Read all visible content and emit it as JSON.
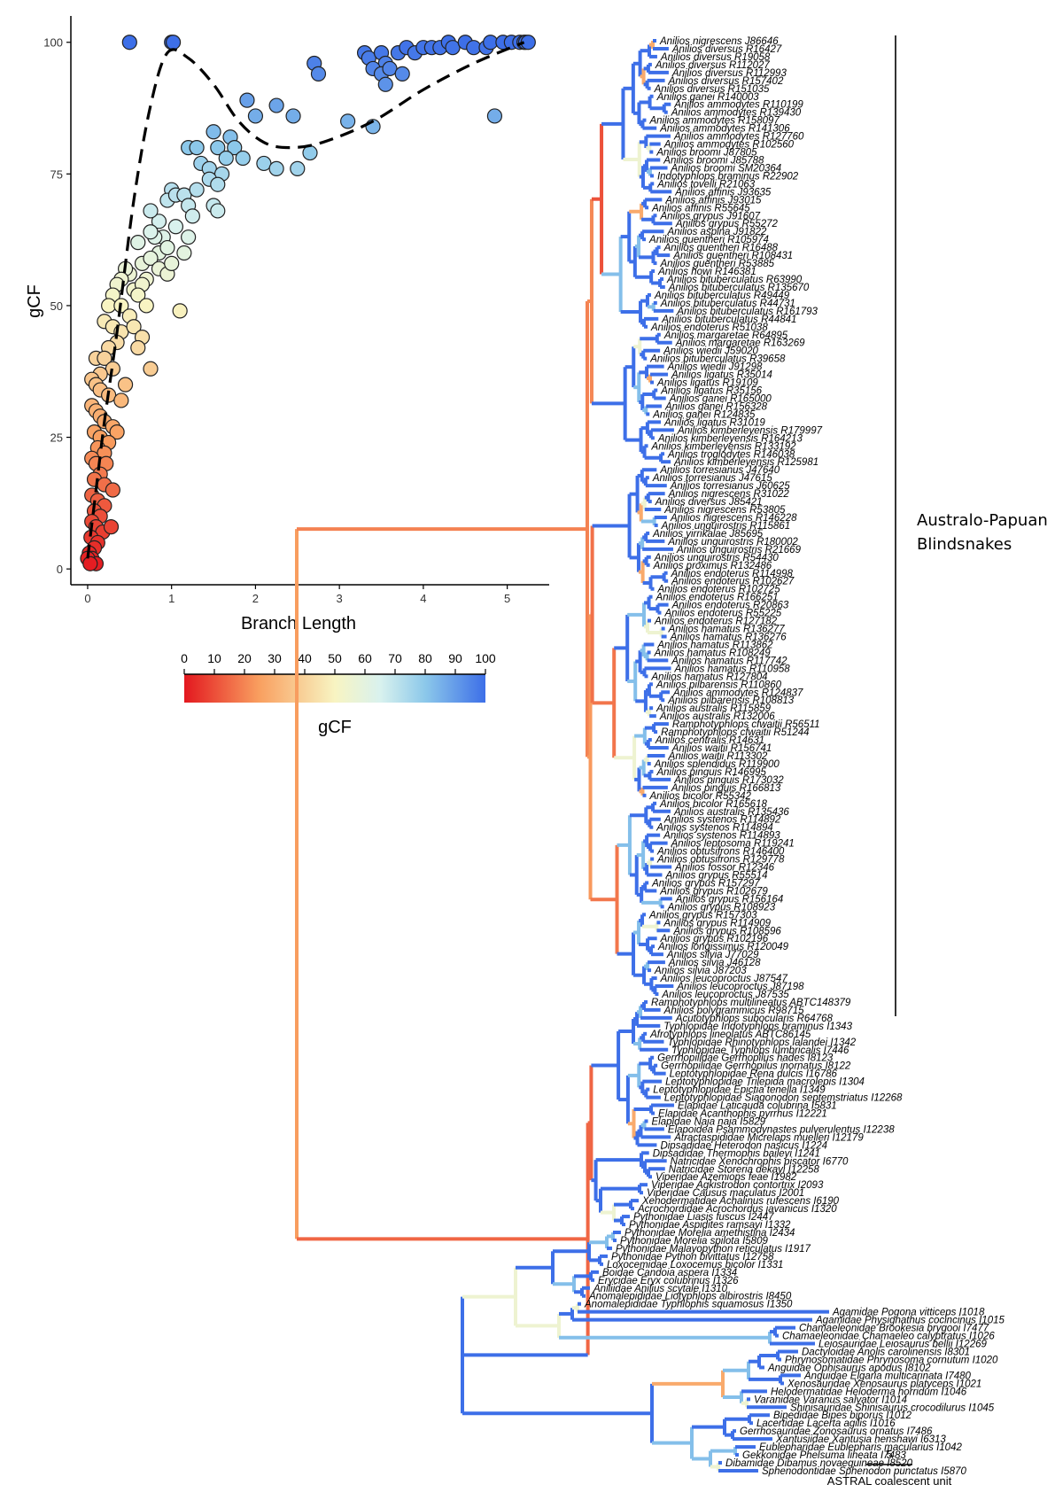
{
  "scatter": {
    "chart_data": {
      "type": "scatter",
      "xlabel": "Branch Length",
      "ylabel": "gCF",
      "xlim": [
        -0.2,
        5.5
      ],
      "ylim": [
        -3,
        105
      ],
      "x_ticks": [
        "0",
        "1",
        "2",
        "3",
        "4",
        "5"
      ],
      "y_ticks": [
        "0",
        "25",
        "50",
        "75",
        "100"
      ],
      "grid": false,
      "color_by": "gCF",
      "points": [
        [
          0.5,
          100
        ],
        [
          1.0,
          100
        ],
        [
          1.02,
          100
        ],
        [
          3.3,
          98
        ],
        [
          3.35,
          97
        ],
        [
          3.5,
          98
        ],
        [
          3.55,
          96
        ],
        [
          3.7,
          98
        ],
        [
          3.8,
          99
        ],
        [
          3.9,
          98
        ],
        [
          4.0,
          99
        ],
        [
          4.1,
          99
        ],
        [
          4.2,
          99
        ],
        [
          4.3,
          100
        ],
        [
          4.35,
          99
        ],
        [
          4.5,
          100
        ],
        [
          4.6,
          99
        ],
        [
          4.75,
          99
        ],
        [
          4.8,
          100
        ],
        [
          4.95,
          100
        ],
        [
          5.05,
          100
        ],
        [
          5.15,
          100
        ],
        [
          5.2,
          100
        ],
        [
          5.22,
          100
        ],
        [
          5.25,
          100
        ],
        [
          2.7,
          96
        ],
        [
          2.75,
          94
        ],
        [
          3.4,
          95
        ],
        [
          3.5,
          94
        ],
        [
          3.6,
          95
        ],
        [
          3.55,
          92
        ],
        [
          3.75,
          94
        ],
        [
          1.9,
          89
        ],
        [
          2.25,
          88
        ],
        [
          2.45,
          86
        ],
        [
          2.0,
          86
        ],
        [
          2.65,
          79
        ],
        [
          3.1,
          85
        ],
        [
          3.4,
          84
        ],
        [
          4.85,
          86
        ],
        [
          1.2,
          80
        ],
        [
          1.3,
          80
        ],
        [
          1.5,
          83
        ],
        [
          1.55,
          80
        ],
        [
          1.7,
          82
        ],
        [
          1.75,
          80
        ],
        [
          1.65,
          78
        ],
        [
          1.85,
          78
        ],
        [
          2.1,
          77
        ],
        [
          2.25,
          76
        ],
        [
          2.5,
          76
        ],
        [
          1.35,
          77
        ],
        [
          1.45,
          76
        ],
        [
          1.6,
          75
        ],
        [
          1.0,
          72
        ],
        [
          0.95,
          70
        ],
        [
          1.05,
          71
        ],
        [
          1.15,
          71
        ],
        [
          1.3,
          72
        ],
        [
          1.45,
          74
        ],
        [
          1.55,
          73
        ],
        [
          1.2,
          69
        ],
        [
          1.25,
          67
        ],
        [
          1.5,
          69
        ],
        [
          1.55,
          68
        ],
        [
          0.85,
          66
        ],
        [
          0.75,
          68
        ],
        [
          1.05,
          65
        ],
        [
          1.2,
          63
        ],
        [
          0.9,
          63
        ],
        [
          0.8,
          63
        ],
        [
          0.85,
          60
        ],
        [
          0.75,
          64
        ],
        [
          0.95,
          61
        ],
        [
          1.15,
          60
        ],
        [
          0.6,
          62
        ],
        [
          0.65,
          58
        ],
        [
          0.75,
          59
        ],
        [
          0.85,
          57
        ],
        [
          0.95,
          56
        ],
        [
          1.0,
          58
        ],
        [
          0.7,
          55
        ],
        [
          0.5,
          56
        ],
        [
          0.45,
          57
        ],
        [
          0.4,
          55
        ],
        [
          0.35,
          54
        ],
        [
          0.55,
          53
        ],
        [
          0.65,
          54
        ],
        [
          0.3,
          52
        ],
        [
          0.25,
          50
        ],
        [
          0.4,
          50
        ],
        [
          0.5,
          48
        ],
        [
          0.6,
          52
        ],
        [
          0.7,
          50
        ],
        [
          1.1,
          49
        ],
        [
          0.2,
          47
        ],
        [
          0.3,
          46
        ],
        [
          0.4,
          45
        ],
        [
          0.55,
          46
        ],
        [
          0.65,
          44
        ],
        [
          0.35,
          43
        ],
        [
          0.25,
          42
        ],
        [
          0.6,
          42
        ],
        [
          0.1,
          40
        ],
        [
          0.2,
          40
        ],
        [
          0.3,
          38
        ],
        [
          0.15,
          37
        ],
        [
          0.05,
          36
        ],
        [
          0.1,
          35
        ],
        [
          0.15,
          34
        ],
        [
          0.25,
          33
        ],
        [
          0.75,
          38
        ],
        [
          0.45,
          35
        ],
        [
          0.05,
          31
        ],
        [
          0.1,
          30
        ],
        [
          0.15,
          29
        ],
        [
          0.2,
          28
        ],
        [
          0.3,
          27
        ],
        [
          0.35,
          26
        ],
        [
          0.4,
          32
        ],
        [
          0.08,
          26
        ],
        [
          0.15,
          25
        ],
        [
          0.25,
          24
        ],
        [
          0.12,
          23
        ],
        [
          0.2,
          22
        ],
        [
          0.05,
          21
        ],
        [
          0.1,
          20
        ],
        [
          0.22,
          20
        ],
        [
          0.15,
          18
        ],
        [
          0.08,
          17
        ],
        [
          0.2,
          16
        ],
        [
          0.3,
          15
        ],
        [
          0.05,
          14
        ],
        [
          0.12,
          13
        ],
        [
          0.2,
          12
        ],
        [
          0.08,
          11
        ],
        [
          0.15,
          10
        ],
        [
          0.05,
          9
        ],
        [
          0.1,
          8
        ],
        [
          0.18,
          7
        ],
        [
          0.28,
          8
        ],
        [
          0.04,
          6
        ],
        [
          0.12,
          5
        ],
        [
          0.08,
          4
        ],
        [
          0.02,
          3
        ],
        [
          0.05,
          2
        ],
        [
          0.1,
          1
        ],
        [
          0.0,
          2
        ],
        [
          0.03,
          1
        ]
      ],
      "trend": [
        [
          0.0,
          2
        ],
        [
          0.1,
          15
        ],
        [
          0.2,
          28
        ],
        [
          0.35,
          45
        ],
        [
          0.55,
          70
        ],
        [
          0.75,
          88
        ],
        [
          0.95,
          98
        ],
        [
          1.2,
          97
        ],
        [
          1.5,
          92
        ],
        [
          1.8,
          85
        ],
        [
          2.1,
          81
        ],
        [
          2.4,
          80
        ],
        [
          2.8,
          81
        ],
        [
          3.4,
          85
        ],
        [
          4.0,
          91
        ],
        [
          4.6,
          96
        ],
        [
          5.2,
          100
        ]
      ]
    }
  },
  "colorbar": {
    "ticks": [
      "0",
      "10",
      "20",
      "30",
      "40",
      "50",
      "60",
      "70",
      "80",
      "90",
      "100"
    ],
    "label": "gCF"
  },
  "tree": {
    "clade_label_line1": "Australo-Papuan",
    "clade_label_line2": "Blindsnakes",
    "scale_value": "5",
    "scale_unit": "ASTRAL coalescent unit",
    "tips": [
      "Anilios nigrescens J86646",
      "Anilios diversus R16427",
      "Anilios diversus R19058",
      "Anilios diversus R112027",
      "Anilios diversus R112993",
      "Anilios diversus R157402",
      "Anilios diversus R151035",
      "Anilios ganei R140003",
      "Anilios ammodytes R110199",
      "Anilios ammodytes R139430",
      "Anilios ammodytes R158097",
      "Anilios ammodytes R141306",
      "Anilios ammodytes R127760",
      "Anilios ammodytes R102560",
      "Anilios broomi J87805",
      "Anilios broomi J85788",
      "Anilios broomi SM20364",
      "Indotyphlops braminus R22902",
      "Anilios tovelli R21063",
      "Anilios affinis J93635",
      "Anilios affinis J93015",
      "Anilios affinis R55645",
      "Anilios grypus J91607",
      "Anilios grypus R55272",
      "Anilios aspina J91822",
      "Anilios guentheri R105974",
      "Anilios guentheri R16488",
      "Anilios guentheri R108431",
      "Anilios guentheri R53885",
      "Anilios howi R146381",
      "Anilios bituberculatus R63990",
      "Anilios bituberculatus R135670",
      "Anilios bituberculatus R49449",
      "Anilios bituberculatus R44731",
      "Anilios bituberculatus R161793",
      "Anilios bituberculatus R44841",
      "Anilios endoterus R51038",
      "Anilios margaretae R64895",
      "Anilios margaretae R163269",
      "Anilios wiedii J59020",
      "Anilios bituberculatus R39658",
      "Anilios wiedii J91298",
      "Anilios ligatus R35014",
      "Anilios ligatus R19109",
      "Anilios ligatus R35156",
      "Anilios ganei R165000",
      "Anilios ganei R156328",
      "Anilios ganei R124835",
      "Anilios ligatus R31019",
      "Anilios kimberleyensis R179997",
      "Anilios kimberleyensis R164213",
      "Anilios kimberleyensis R133192",
      "Anilios troglodytes R146038",
      "Anilios kimberleyensis R125981",
      "Anilios torresianus J47640",
      "Anilios torresianus J47615",
      "Anilios torresianus J60625",
      "Anilios nigrescens R31022",
      "Anilios diversus J85421",
      "Anilios nigrescens R53805",
      "Anilios nigrescens R146228",
      "Anilios unguirostris R115861",
      "Anilios yirrikalae J85695",
      "Anilios unguirostris R180002",
      "Anilios unguirostris R21669",
      "Anilios unguirostris R54430",
      "Anilios proximus R132486",
      "Anilios endoterus R114998",
      "Anilios endoterus R102627",
      "Anilios endoterus R102725",
      "Anilios endoterus R166251",
      "Anilios endoterus R20863",
      "Anilios endoterus R55225",
      "Anilios endoterus R127182",
      "Anilios hamatus R136277",
      "Anilios hamatus R136276",
      "Anilios hamatus R113862",
      "Anilios hamatus R108249",
      "Anilios hamatus R117742",
      "Anilios hamatus R110958",
      "Anilios hamatus R127804",
      "Anilios pilbarensis R110860",
      "Anilios ammodytes R124837",
      "Anilios pilbarensis R108813",
      "Anilios australis R115859",
      "Anilios australis R132006",
      "Ramphotyphlops cfwaitii R56511",
      "Ramphotyphlops cfwaitii R51244",
      "Anilios centralis R14631",
      "Anilios waitii R156741",
      "Anilios waitii R113302",
      "Anilios splendidus R119900",
      "Anilios pinguis R146995",
      "Anilios pinguis R173032",
      "Anilios pinguis R166813",
      "Anilios bicolor R55342",
      "Anilios bicolor R165618",
      "Anilios australis R135436",
      "Anilios systenos R114892",
      "Anilios systenos R114894",
      "Anilios systenos R114893",
      "Anilios leptosoma R119241",
      "Anilios obtusifrons R146400",
      "Anilios obtusifrons R129778",
      "Anilios fossor R12346",
      "Anilios grypus R55514",
      "Anilios grypus R157297",
      "Anilios grypus R102679",
      "Anilios grypus R156164",
      "Anilios grypus R108923",
      "Anilios grypus R157303",
      "Anilios grypus R114909",
      "Anilios grypus R108596",
      "Anilios grypus R102196",
      "Anilios longissimus R120049",
      "Anilios silvia J77029",
      "Anilios silvia J46128",
      "Anilios silvia J87203",
      "Anilios leucoproctus J87547",
      "Anilios leucoproctus J87198",
      "Anilios leucoproctus J87535",
      "Ramphotyphlops multilineatus ABTC148379",
      "Anilios polygrammicus R98715",
      "Acutotyphlops subocularis R64768",
      "Typhlopidae Indotyphlops braminus I1343",
      "Afrotyphlops lineolatus ABTC86145",
      "Typhlopidae Rhinotyphlops lalandei I1342",
      "Typhlopidae Typhlops lumbricalis I7446",
      "Gerrhopilidae Gerrhopilus hades I8123",
      "Gerrhopilidae Gerrhopilus inornatus I8122",
      "Leptotyphlopidae Rena dulcis I16786",
      "Leptotyphlopidae Trilepida macrolepis I1304",
      "Leptotyphlopidae Epictia tenella I1349",
      "Leptotyphlopidae Siagonodon septemstriatus I12268",
      "Elapidae Laticauda colubrina I5831",
      "Elapidae Acanthophis pyrrhus I12221",
      "Elapidae Naja naja I5829",
      "Elapoidea Psammodynastes pulverulentus I12238",
      "Atractaspididae Micrelaps muelleri I12179",
      "Dipsadidae Heterodon nasicus I1224",
      "Dipsadidae Thermophis baileyi I1241",
      "Natricidae Xenochrophis piscator I6770",
      "Natricidae Storeria dekayi I12258",
      "Viperidae Azemiops feae I1982",
      "Viperidae Agkistrodon contortrix I2093",
      "Viperidae Causus maculatus I2001",
      "Xenodermatidae Achalinus rufescens I6190",
      "Acrochordidae Acrochordus javanicus I1320",
      "Pythonidae Liasis fuscus I2447",
      "Pythonidae Aspidites ramsayi I1332",
      "Pythonidae Morelia amethistina I2434",
      "Pythonidae Morelia spilota I5809",
      "Pythonidae Malayopython reticulatus I1917",
      "Pythonidae Python bivittatus I12758",
      "Loxocemidae Loxocemus bicolor I1331",
      "Boidae Candoia aspera I1334",
      "Erycidae Eryx colubrinus I1326",
      "Aniliidae Anilius scytale I1310",
      "Anomalepididae Liotyphlops albirostris I8450",
      "Anomalepididae Typhlophis squamosus I1350",
      "Agamidae Pogona vitticeps I1018",
      "Agamidae Physignathus cocincinus I1015",
      "Chamaeleonidae Brookesia brygooi I7477",
      "Chamaeleonidae Chamaeleo calyptratus I1026",
      "Leiosauridae Leiosaurus bellii I12269",
      "Dactyloidae Anolis carolinensis I8301",
      "Phrynosomatidae Phrynosoma cornutum I1020",
      "Anguidae Ophisaurus apodus I8102",
      "Anguidae Elgaria multicarinata I7480",
      "Xenosauridae Xenosaurus platyceps I1021",
      "Helodermatidae Heloderma horridum I1046",
      "Varanidae Varanus salvator I1014",
      "Shinisauridae Shinisaurus crocodilurus I1045",
      "Bipedidae Bipes biporus I1012",
      "Lacertidae Lacerta agilis I1016",
      "Gerrhosauridae Zonosaurus ornatus I7486",
      "Xantusiidae Xantusia henshawi I6313",
      "Eublepharidae Eublepharis macularius I1042",
      "Gekkonidae Phelsuma lineata I7483",
      "Dibamidae Dibamus novaeguineae I8520",
      "Sphenodontidae Sphenodon punctatus I5870"
    ]
  }
}
